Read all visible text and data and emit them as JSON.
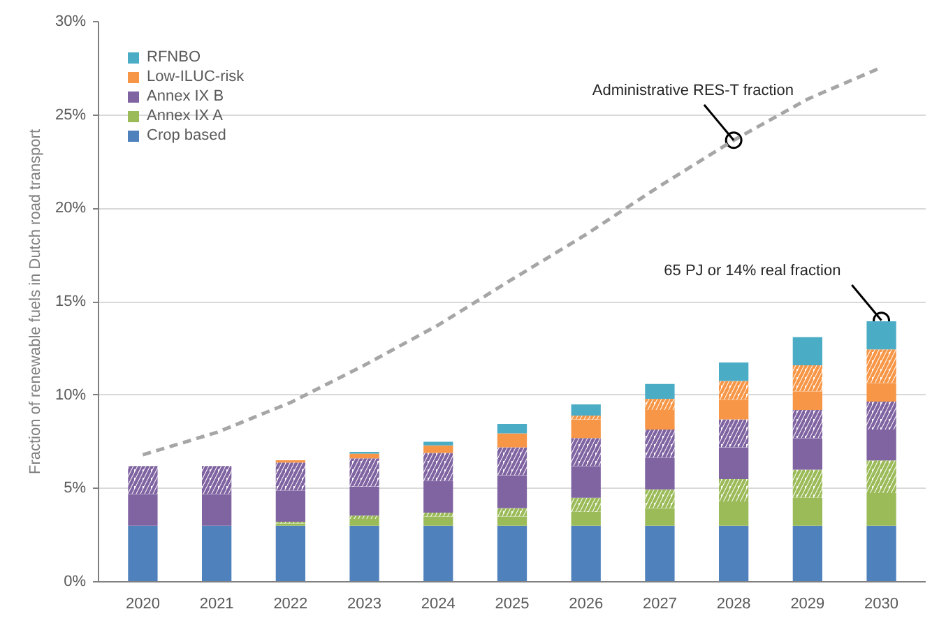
{
  "chart_data": {
    "type": "bar",
    "stacked": true,
    "ylabel": "Fraction of renewable fuels in Dutch road transport",
    "categories": [
      "2020",
      "2021",
      "2022",
      "2023",
      "2024",
      "2025",
      "2026",
      "2027",
      "2028",
      "2029",
      "2030"
    ],
    "series": [
      {
        "name": "Crop based",
        "color": "#4f81bd",
        "values": [
          3.0,
          3.0,
          3.0,
          3.0,
          3.0,
          3.0,
          3.0,
          3.0,
          3.0,
          3.0,
          3.0
        ]
      },
      {
        "name": "Annex IX A",
        "color": "#9bbb59",
        "values": [
          0,
          0,
          0.12,
          0.37,
          0.5,
          0.5,
          0.75,
          0.95,
          1.3,
          1.5,
          1.75
        ]
      },
      {
        "color": "#9bbb59",
        "values": [
          0,
          0,
          0.1,
          0.17,
          0.2,
          0.45,
          0.75,
          1.0,
          1.2,
          1.5,
          1.75
        ]
      },
      {
        "name": "Annex IX B",
        "color": "#8064a2",
        "values": [
          1.7,
          1.7,
          1.67,
          1.57,
          1.7,
          1.75,
          1.7,
          1.7,
          1.7,
          1.7,
          1.65
        ]
      },
      {
        "color": "#8064a2",
        "values": [
          1.5,
          1.5,
          1.5,
          1.5,
          1.5,
          1.5,
          1.5,
          1.5,
          1.5,
          1.5,
          1.5
        ]
      },
      {
        "name": "Low-ILUC-risk",
        "color": "#f79646",
        "values": [
          0,
          0,
          0.12,
          0.25,
          0.4,
          0.75,
          1.0,
          1.05,
          1.05,
          1.0,
          1.0
        ]
      },
      {
        "color": "#f79646",
        "values": [
          0,
          0,
          0,
          0,
          0,
          0,
          0.2,
          0.6,
          1.0,
          1.4,
          1.8
        ]
      },
      {
        "name": "RFNBO",
        "color": "#4bacc6",
        "values": [
          0,
          0,
          0,
          0.1,
          0.2,
          0.5,
          0.6,
          0.8,
          1.0,
          1.5,
          1.5
        ]
      },
      {
        "type": "line",
        "color": "#a6a6a6",
        "line_style": "dashed",
        "values": [
          6.8,
          8.0,
          9.6,
          11.6,
          13.75,
          16.2,
          18.6,
          21.2,
          23.65,
          25.85,
          27.55
        ]
      }
    ],
    "ylim": [
      0,
      30
    ],
    "yticks": [
      {
        "value": 0,
        "label": "0%"
      },
      {
        "value": 5,
        "label": "5%"
      },
      {
        "value": 10,
        "label": "10%"
      },
      {
        "value": 15,
        "label": "15%"
      },
      {
        "value": 20,
        "label": "20%"
      },
      {
        "value": 25,
        "label": "25%"
      },
      {
        "value": 30,
        "label": "30%"
      }
    ],
    "grid": "y",
    "legend": "top left",
    "annotations": [
      {
        "text": "Administrative RES-T fraction",
        "x": "2028",
        "y": 23.65
      },
      {
        "text": "65 PJ or 14% real fraction",
        "x": "2030",
        "y": 14.0
      }
    ]
  }
}
